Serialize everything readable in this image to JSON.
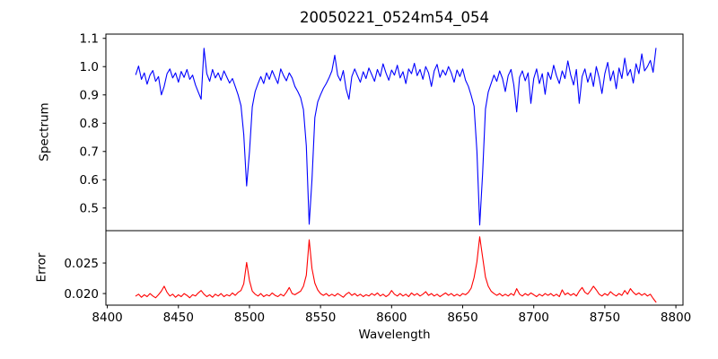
{
  "chart_data": {
    "type": "line",
    "title": "20050221_0524m54_054",
    "xlabel": "Wavelength",
    "grid": false,
    "legend": "none",
    "xlim": [
      8399,
      8805
    ],
    "xtick_labels": [
      "8400",
      "8450",
      "8500",
      "8550",
      "8600",
      "8650",
      "8700",
      "8750",
      "8800"
    ],
    "x": [
      8420,
      8422,
      8424,
      8426,
      8428,
      8430,
      8432,
      8434,
      8436,
      8438,
      8440,
      8442,
      8444,
      8446,
      8448,
      8450,
      8452,
      8454,
      8456,
      8458,
      8460,
      8462,
      8464,
      8466,
      8468,
      8470,
      8472,
      8474,
      8476,
      8478,
      8480,
      8482,
      8484,
      8486,
      8488,
      8490,
      8492,
      8494,
      8496,
      8498,
      8500,
      8502,
      8504,
      8506,
      8508,
      8510,
      8512,
      8514,
      8516,
      8518,
      8520,
      8522,
      8524,
      8526,
      8528,
      8530,
      8532,
      8534,
      8536,
      8538,
      8540,
      8542,
      8544,
      8546,
      8548,
      8550,
      8552,
      8554,
      8556,
      8558,
      8560,
      8562,
      8564,
      8566,
      8568,
      8570,
      8572,
      8574,
      8576,
      8578,
      8580,
      8582,
      8584,
      8586,
      8588,
      8590,
      8592,
      8594,
      8596,
      8598,
      8600,
      8602,
      8604,
      8606,
      8608,
      8610,
      8612,
      8614,
      8616,
      8618,
      8620,
      8622,
      8624,
      8626,
      8628,
      8630,
      8632,
      8634,
      8636,
      8638,
      8640,
      8642,
      8644,
      8646,
      8648,
      8650,
      8652,
      8654,
      8656,
      8658,
      8660,
      8662,
      8664,
      8666,
      8668,
      8670,
      8672,
      8674,
      8676,
      8678,
      8680,
      8682,
      8684,
      8686,
      8688,
      8690,
      8692,
      8694,
      8696,
      8698,
      8700,
      8702,
      8704,
      8706,
      8708,
      8710,
      8712,
      8714,
      8716,
      8718,
      8720,
      8722,
      8724,
      8726,
      8728,
      8730,
      8732,
      8734,
      8736,
      8738,
      8740,
      8742,
      8744,
      8746,
      8748,
      8750,
      8752,
      8754,
      8756,
      8758,
      8760,
      8762,
      8764,
      8766,
      8768,
      8770,
      8772,
      8774,
      8776,
      8778,
      8780,
      8782,
      8784,
      8786
    ],
    "panels": [
      {
        "name": "spectrum",
        "ylabel": "Spectrum",
        "color": "#0000ff",
        "ylim": [
          0.42,
          1.115
        ],
        "ytick_labels": [
          "0.5",
          "0.6",
          "0.7",
          "0.8",
          "0.9",
          "1.0",
          "1.1"
        ],
        "values": [
          0.972,
          1.002,
          0.955,
          0.978,
          0.938,
          0.97,
          0.986,
          0.948,
          0.965,
          0.9,
          0.93,
          0.975,
          0.992,
          0.96,
          0.978,
          0.945,
          0.983,
          0.962,
          0.99,
          0.955,
          0.97,
          0.935,
          0.91,
          0.885,
          1.065,
          0.975,
          0.948,
          0.99,
          0.96,
          0.978,
          0.952,
          0.985,
          0.964,
          0.942,
          0.958,
          0.93,
          0.9,
          0.862,
          0.76,
          0.578,
          0.7,
          0.858,
          0.912,
          0.94,
          0.965,
          0.94,
          0.978,
          0.955,
          0.986,
          0.962,
          0.94,
          0.992,
          0.968,
          0.95,
          0.978,
          0.96,
          0.93,
          0.912,
          0.89,
          0.848,
          0.72,
          0.443,
          0.6,
          0.82,
          0.875,
          0.9,
          0.923,
          0.94,
          0.96,
          0.985,
          1.04,
          0.97,
          0.95,
          0.986,
          0.92,
          0.885,
          0.965,
          0.992,
          0.968,
          0.945,
          0.982,
          0.958,
          0.995,
          0.972,
          0.948,
          0.99,
          0.965,
          1.01,
          0.978,
          0.952,
          0.988,
          0.97,
          1.005,
          0.96,
          0.982,
          0.94,
          0.992,
          0.975,
          1.012,
          0.968,
          0.99,
          0.955,
          1.0,
          0.978,
          0.93,
          0.985,
          1.008,
          0.962,
          0.988,
          0.97,
          1.0,
          0.978,
          0.945,
          0.988,
          0.965,
          0.992,
          0.952,
          0.93,
          0.898,
          0.86,
          0.7,
          0.44,
          0.62,
          0.85,
          0.91,
          0.94,
          0.97,
          0.948,
          0.985,
          0.958,
          0.912,
          0.968,
          0.99,
          0.935,
          0.84,
          0.962,
          0.985,
          0.95,
          0.978,
          0.87,
          0.958,
          0.992,
          0.94,
          0.975,
          0.902,
          0.98,
          0.955,
          1.005,
          0.968,
          0.94,
          0.985,
          0.958,
          1.02,
          0.97,
          0.935,
          0.99,
          0.87,
          0.965,
          0.992,
          0.945,
          0.978,
          0.93,
          1.0,
          0.96,
          0.905,
          0.975,
          1.015,
          0.95,
          0.985,
          0.922,
          0.995,
          0.958,
          1.03,
          0.968,
          0.99,
          0.942,
          1.01,
          0.975,
          1.045,
          0.985,
          1.0,
          1.022,
          0.98,
          1.065
        ]
      },
      {
        "name": "error",
        "ylabel": "Error",
        "color": "#ff0000",
        "ylim": [
          0.0181,
          0.0303
        ],
        "ytick_labels": [
          "0.020",
          "0.025"
        ],
        "values": [
          0.0196,
          0.0199,
          0.0194,
          0.0198,
          0.0195,
          0.02,
          0.0196,
          0.0193,
          0.0198,
          0.0204,
          0.0212,
          0.0202,
          0.0196,
          0.0199,
          0.0194,
          0.0198,
          0.0195,
          0.02,
          0.0197,
          0.0193,
          0.0198,
          0.0196,
          0.0201,
          0.0205,
          0.0199,
          0.0195,
          0.0198,
          0.0194,
          0.0199,
          0.0196,
          0.02,
          0.0195,
          0.0198,
          0.0196,
          0.0201,
          0.0197,
          0.0202,
          0.0205,
          0.0216,
          0.0251,
          0.0221,
          0.0204,
          0.0199,
          0.0196,
          0.02,
          0.0195,
          0.0198,
          0.0196,
          0.0201,
          0.0197,
          0.0195,
          0.0199,
          0.0196,
          0.0202,
          0.021,
          0.02,
          0.0198,
          0.0201,
          0.0204,
          0.0212,
          0.023,
          0.0288,
          0.0241,
          0.0217,
          0.0206,
          0.02,
          0.0197,
          0.02,
          0.0196,
          0.0199,
          0.0196,
          0.02,
          0.0197,
          0.0194,
          0.0199,
          0.0202,
          0.0197,
          0.02,
          0.0196,
          0.0199,
          0.0195,
          0.0198,
          0.0196,
          0.02,
          0.0197,
          0.0201,
          0.0196,
          0.0199,
          0.0195,
          0.0198,
          0.0205,
          0.0199,
          0.0196,
          0.02,
          0.0196,
          0.0199,
          0.0195,
          0.0201,
          0.0197,
          0.02,
          0.0196,
          0.0199,
          0.0203,
          0.0197,
          0.02,
          0.0196,
          0.0199,
          0.0195,
          0.0198,
          0.0201,
          0.0197,
          0.02,
          0.0196,
          0.0199,
          0.0196,
          0.02,
          0.0198,
          0.0202,
          0.0209,
          0.0226,
          0.0252,
          0.0293,
          0.026,
          0.0227,
          0.0212,
          0.0204,
          0.02,
          0.0197,
          0.02,
          0.0196,
          0.0199,
          0.0196,
          0.02,
          0.0197,
          0.0208,
          0.0199,
          0.0196,
          0.02,
          0.0197,
          0.0201,
          0.0198,
          0.0195,
          0.0199,
          0.0196,
          0.02,
          0.0197,
          0.02,
          0.0196,
          0.0199,
          0.0195,
          0.0206,
          0.0198,
          0.0201,
          0.0197,
          0.02,
          0.0196,
          0.0204,
          0.021,
          0.0202,
          0.0199,
          0.0205,
          0.0212,
          0.0206,
          0.0199,
          0.0196,
          0.02,
          0.0197,
          0.0203,
          0.0199,
          0.0196,
          0.02,
          0.0197,
          0.0205,
          0.0199,
          0.0208,
          0.0202,
          0.0198,
          0.0201,
          0.0197,
          0.02,
          0.0196,
          0.0199,
          0.0192,
          0.0186
        ]
      }
    ],
    "axis_color": "#000000"
  }
}
